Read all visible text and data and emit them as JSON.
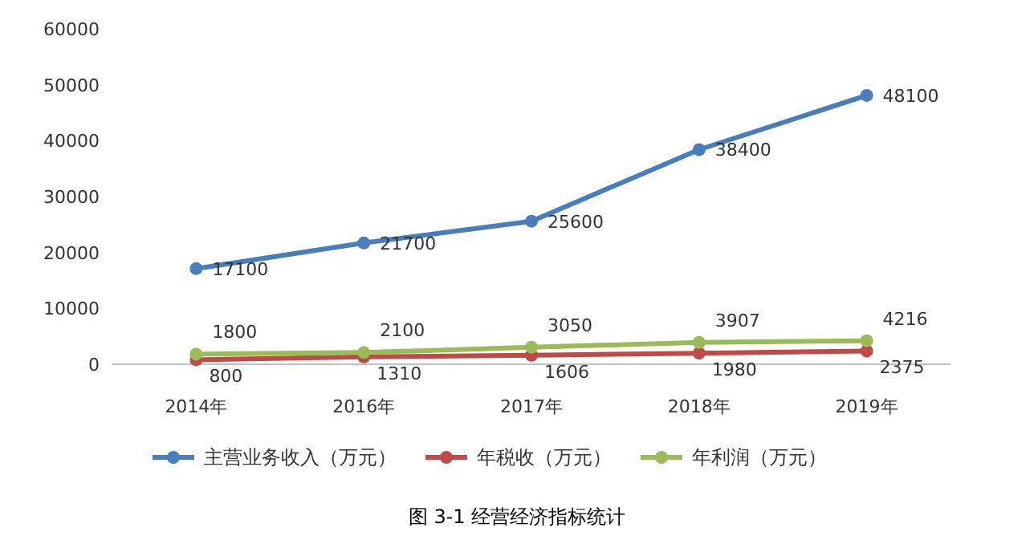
{
  "chart_data": {
    "type": "line",
    "title": "图 3-1 经营经济指标统计",
    "categories": [
      "2014年",
      "2016年",
      "2017年",
      "2018年",
      "2019年"
    ],
    "series": [
      {
        "name": "主营业务收入（万元）",
        "color": "#4a7ebb",
        "values": [
          17100,
          21700,
          25600,
          38400,
          48100
        ]
      },
      {
        "name": "年税收（万元）",
        "color": "#be4b48",
        "values": [
          800,
          1310,
          1606,
          1980,
          2375
        ]
      },
      {
        "name": "年利润（万元）",
        "color": "#9bbb59",
        "values": [
          1800,
          2100,
          3050,
          3907,
          4216
        ]
      }
    ],
    "ylim": [
      0,
      60000
    ],
    "yticks": [
      0,
      10000,
      20000,
      30000,
      40000,
      50000,
      60000
    ],
    "data_labels": true,
    "legend": "bottom",
    "marker": "circle",
    "line_style": "solid",
    "grid": false
  }
}
